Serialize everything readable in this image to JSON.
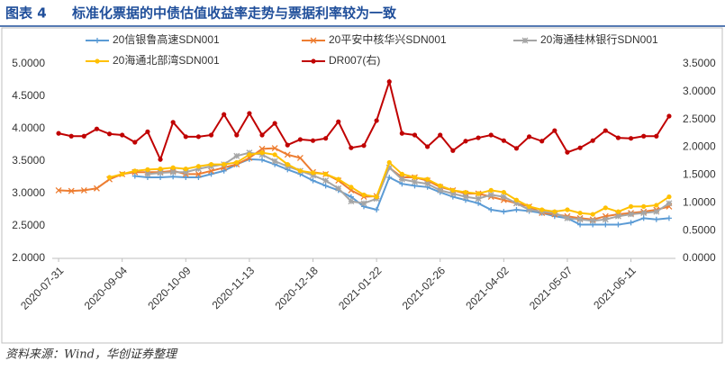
{
  "label": "图表 4",
  "source": "资料来源：Wind，华创证券整理",
  "chart_data": {
    "type": "line",
    "title": "标准化票据的中债估值收益率走势与票据利率较为一致",
    "categories": [
      "2020-07-31",
      null,
      null,
      null,
      null,
      "2020-09-04",
      null,
      null,
      null,
      null,
      "2020-10-09",
      null,
      null,
      null,
      null,
      "2020-11-13",
      null,
      null,
      null,
      null,
      "2020-12-18",
      null,
      null,
      null,
      null,
      "2021-01-22",
      null,
      null,
      null,
      null,
      "2021-02-26",
      null,
      null,
      null,
      null,
      "2021-04-02",
      null,
      null,
      null,
      null,
      "2021-05-07",
      null,
      null,
      null,
      null,
      "2021-06-11",
      null,
      null,
      null
    ],
    "series": [
      {
        "name": "20信银鲁高速SDN001",
        "color": "#5b9bd5",
        "marker": "plus",
        "values": [
          null,
          null,
          null,
          null,
          null,
          null,
          3.27,
          3.25,
          3.25,
          3.26,
          3.25,
          3.25,
          3.3,
          3.35,
          3.45,
          3.53,
          3.52,
          3.45,
          3.37,
          3.3,
          3.2,
          3.12,
          3.05,
          2.95,
          2.8,
          2.75,
          3.25,
          3.15,
          3.12,
          3.1,
          3.02,
          2.95,
          2.9,
          2.85,
          2.75,
          2.72,
          2.75,
          2.73,
          2.7,
          2.65,
          2.62,
          2.52,
          2.52,
          2.52,
          2.52,
          2.55,
          2.62,
          2.6,
          2.62
        ]
      },
      {
        "name": "20平安中核华兴SDN001",
        "color": "#ed7d31",
        "marker": "cross",
        "values": [
          3.05,
          3.04,
          3.05,
          3.08,
          3.22,
          3.3,
          3.33,
          3.33,
          3.33,
          3.35,
          3.3,
          3.3,
          3.35,
          3.4,
          3.45,
          3.55,
          3.69,
          3.7,
          3.6,
          3.55,
          3.33,
          3.3,
          3.2,
          3.05,
          2.95,
          2.96,
          3.4,
          3.25,
          3.25,
          3.2,
          3.1,
          3.05,
          3.0,
          3.0,
          2.95,
          2.9,
          2.85,
          2.8,
          2.7,
          2.68,
          2.65,
          2.62,
          2.6,
          2.65,
          2.68,
          2.7,
          2.72,
          2.75,
          2.8
        ]
      },
      {
        "name": "20海通桂林银行SDN001",
        "color": "#a5a5a5",
        "marker": "star",
        "values": [
          null,
          null,
          null,
          null,
          null,
          null,
          null,
          3.3,
          3.32,
          3.33,
          3.33,
          3.38,
          3.42,
          3.45,
          3.58,
          3.63,
          3.6,
          3.5,
          3.42,
          3.35,
          3.28,
          3.2,
          3.08,
          2.88,
          2.85,
          2.92,
          3.4,
          3.22,
          3.18,
          3.15,
          3.05,
          3.0,
          2.95,
          2.92,
          2.98,
          2.95,
          2.85,
          2.75,
          2.72,
          2.7,
          2.62,
          2.6,
          2.58,
          2.6,
          2.65,
          2.68,
          2.7,
          2.72,
          2.85
        ]
      },
      {
        "name": "20海通北部湾SDN001",
        "color": "#ffc000",
        "marker": "dot",
        "values": [
          null,
          null,
          null,
          null,
          3.25,
          3.3,
          3.35,
          3.37,
          3.38,
          3.4,
          3.38,
          3.42,
          3.45,
          3.45,
          3.48,
          3.6,
          3.63,
          3.6,
          3.45,
          3.35,
          3.32,
          3.3,
          3.22,
          3.1,
          2.98,
          2.95,
          3.48,
          3.3,
          3.25,
          3.22,
          3.12,
          3.05,
          3.02,
          3.0,
          3.05,
          3.02,
          2.9,
          2.8,
          2.75,
          2.72,
          2.75,
          2.7,
          2.68,
          2.78,
          2.72,
          2.8,
          2.8,
          2.82,
          2.95
        ]
      },
      {
        "name": "DR007(右)",
        "color": "#c00000",
        "marker": "dot",
        "axis": "y2",
        "values": [
          2.25,
          2.2,
          2.2,
          2.33,
          2.24,
          2.22,
          2.09,
          2.28,
          1.78,
          2.45,
          2.19,
          2.19,
          2.22,
          2.59,
          2.22,
          2.61,
          2.22,
          2.43,
          2.04,
          2.14,
          2.12,
          2.16,
          2.46,
          1.99,
          2.03,
          2.48,
          3.18,
          2.25,
          2.22,
          2.01,
          2.22,
          1.94,
          2.11,
          2.17,
          2.22,
          2.12,
          1.98,
          2.19,
          2.11,
          2.3,
          1.91,
          1.99,
          2.12,
          2.3,
          2.17,
          2.16,
          2.2,
          2.2,
          2.56
        ]
      }
    ],
    "ylim": [
      2,
      5
    ],
    "yticks": [
      {
        "value": 2,
        "label": "2.0000"
      },
      {
        "value": 2.5,
        "label": "2.5000"
      },
      {
        "value": 3,
        "label": "3.0000"
      },
      {
        "value": 3.5,
        "label": "3.5000"
      },
      {
        "value": 4,
        "label": "4.0000"
      },
      {
        "value": 4.5,
        "label": "4.5000"
      },
      {
        "value": 5,
        "label": "5.0000"
      }
    ],
    "y2lim": [
      0,
      3.5
    ],
    "y2ticks": [
      {
        "value": 0,
        "label": "0.0000"
      },
      {
        "value": 0.5,
        "label": "0.5000"
      },
      {
        "value": 1,
        "label": "1.0000"
      },
      {
        "value": 1.5,
        "label": "1.5000"
      },
      {
        "value": 2,
        "label": "2.0000"
      },
      {
        "value": 2.5,
        "label": "2.5000"
      },
      {
        "value": 3,
        "label": "3.0000"
      },
      {
        "value": 3.5,
        "label": "3.5000"
      }
    ],
    "grid": false
  }
}
